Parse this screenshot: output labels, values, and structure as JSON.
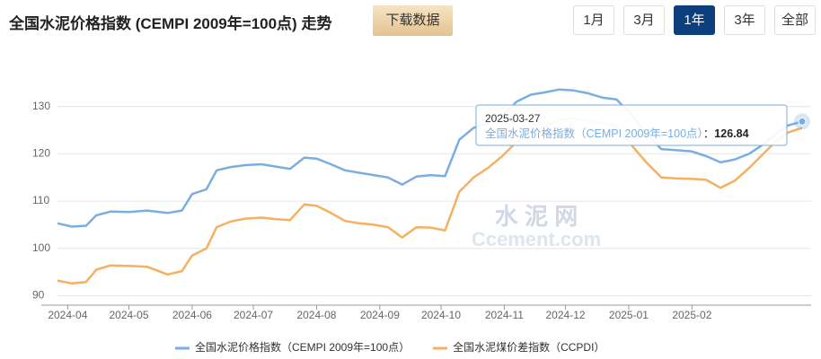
{
  "header": {
    "title": "全国水泥价格指数 (CEMPI 2009年=100点) 走势",
    "download": "下载数据",
    "ranges": [
      "1月",
      "3月",
      "1年",
      "3年",
      "全部"
    ],
    "active_range": 2
  },
  "chart_data": {
    "type": "line",
    "x": [
      "2024-03-27",
      "2024-04-03",
      "2024-04-10",
      "2024-04-15",
      "2024-04-22",
      "2024-05-01",
      "2024-05-10",
      "2024-05-20",
      "2024-05-27",
      "2024-06-01",
      "2024-06-08",
      "2024-06-13",
      "2024-06-20",
      "2024-06-27",
      "2024-07-05",
      "2024-07-12",
      "2024-07-19",
      "2024-07-26",
      "2024-08-01",
      "2024-08-08",
      "2024-08-15",
      "2024-08-22",
      "2024-08-29",
      "2024-09-05",
      "2024-09-12",
      "2024-09-19",
      "2024-09-26",
      "2024-10-03",
      "2024-10-10",
      "2024-10-17",
      "2024-10-24",
      "2024-10-31",
      "2024-11-07",
      "2024-11-14",
      "2024-11-21",
      "2024-11-28",
      "2024-12-05",
      "2024-12-12",
      "2024-12-19",
      "2024-12-26",
      "2025-01-03",
      "2025-01-10",
      "2025-01-17",
      "2025-01-24",
      "2025-02-01",
      "2025-02-08",
      "2025-02-15",
      "2025-02-22",
      "2025-03-01",
      "2025-03-08",
      "2025-03-15",
      "2025-03-20",
      "2025-03-27"
    ],
    "series": [
      {
        "name": "全国水泥价格指数（CEMPI 2009年=100点）",
        "color": "#7aaee0",
        "values": [
          105.3,
          104.6,
          104.8,
          107,
          107.8,
          107.7,
          108,
          107.5,
          108,
          111.5,
          112.5,
          116.5,
          117.2,
          117.6,
          117.8,
          117.3,
          116.8,
          119.2,
          119,
          117.8,
          116.5,
          116,
          115.5,
          115,
          113.5,
          115.2,
          115.5,
          115.3,
          123,
          125.5,
          126.5,
          128,
          131,
          132.5,
          133,
          133.6,
          133.4,
          132.8,
          131.9,
          131.5,
          128,
          124,
          121,
          120.8,
          120.5,
          119.5,
          118.2,
          118.8,
          120,
          122,
          124.5,
          126,
          126.84
        ]
      },
      {
        "name": "全国水泥煤价差指数（CCPDI）",
        "color": "#f5b060",
        "values": [
          93.2,
          92.6,
          92.9,
          95.5,
          96.4,
          96.3,
          96.1,
          94.5,
          95.2,
          98.5,
          100,
          104.5,
          105.7,
          106.3,
          106.5,
          106.2,
          106,
          109.3,
          109,
          107.5,
          105.8,
          105.3,
          105,
          104.5,
          102.3,
          104.5,
          104.4,
          103.8,
          112,
          115,
          117,
          119.5,
          122.5,
          124.5,
          125.8,
          127.2,
          127.5,
          127,
          126.5,
          125.8,
          121.5,
          118,
          115,
          114.8,
          114.7,
          114.5,
          112.8,
          114.3,
          117,
          120,
          123,
          124.5,
          125.5
        ]
      }
    ],
    "xlim": [
      "2024-03-27",
      "2025-03-27"
    ],
    "xticks": [
      {
        "value": "2024-04-01",
        "label": "2024-04"
      },
      {
        "value": "2024-05-01",
        "label": "2024-05"
      },
      {
        "value": "2024-06-01",
        "label": "2024-06"
      },
      {
        "value": "2024-07-01",
        "label": "2024-07"
      },
      {
        "value": "2024-08-01",
        "label": "2024-08"
      },
      {
        "value": "2024-09-01",
        "label": "2024-09"
      },
      {
        "value": "2024-10-01",
        "label": "2024-10"
      },
      {
        "value": "2024-11-01",
        "label": "2024-11"
      },
      {
        "value": "2024-12-01",
        "label": "2024-12"
      },
      {
        "value": "2025-01-01",
        "label": "2025-01"
      },
      {
        "value": "2025-02-01",
        "label": "2025-02"
      }
    ],
    "ylim": [
      88,
      140
    ],
    "yticks": [
      90,
      100,
      110,
      120,
      130
    ],
    "grid": true,
    "legend": "bottom",
    "tooltip_separator": "：",
    "watermark": [
      "水 泥 网",
      "Ccement.com"
    ]
  }
}
